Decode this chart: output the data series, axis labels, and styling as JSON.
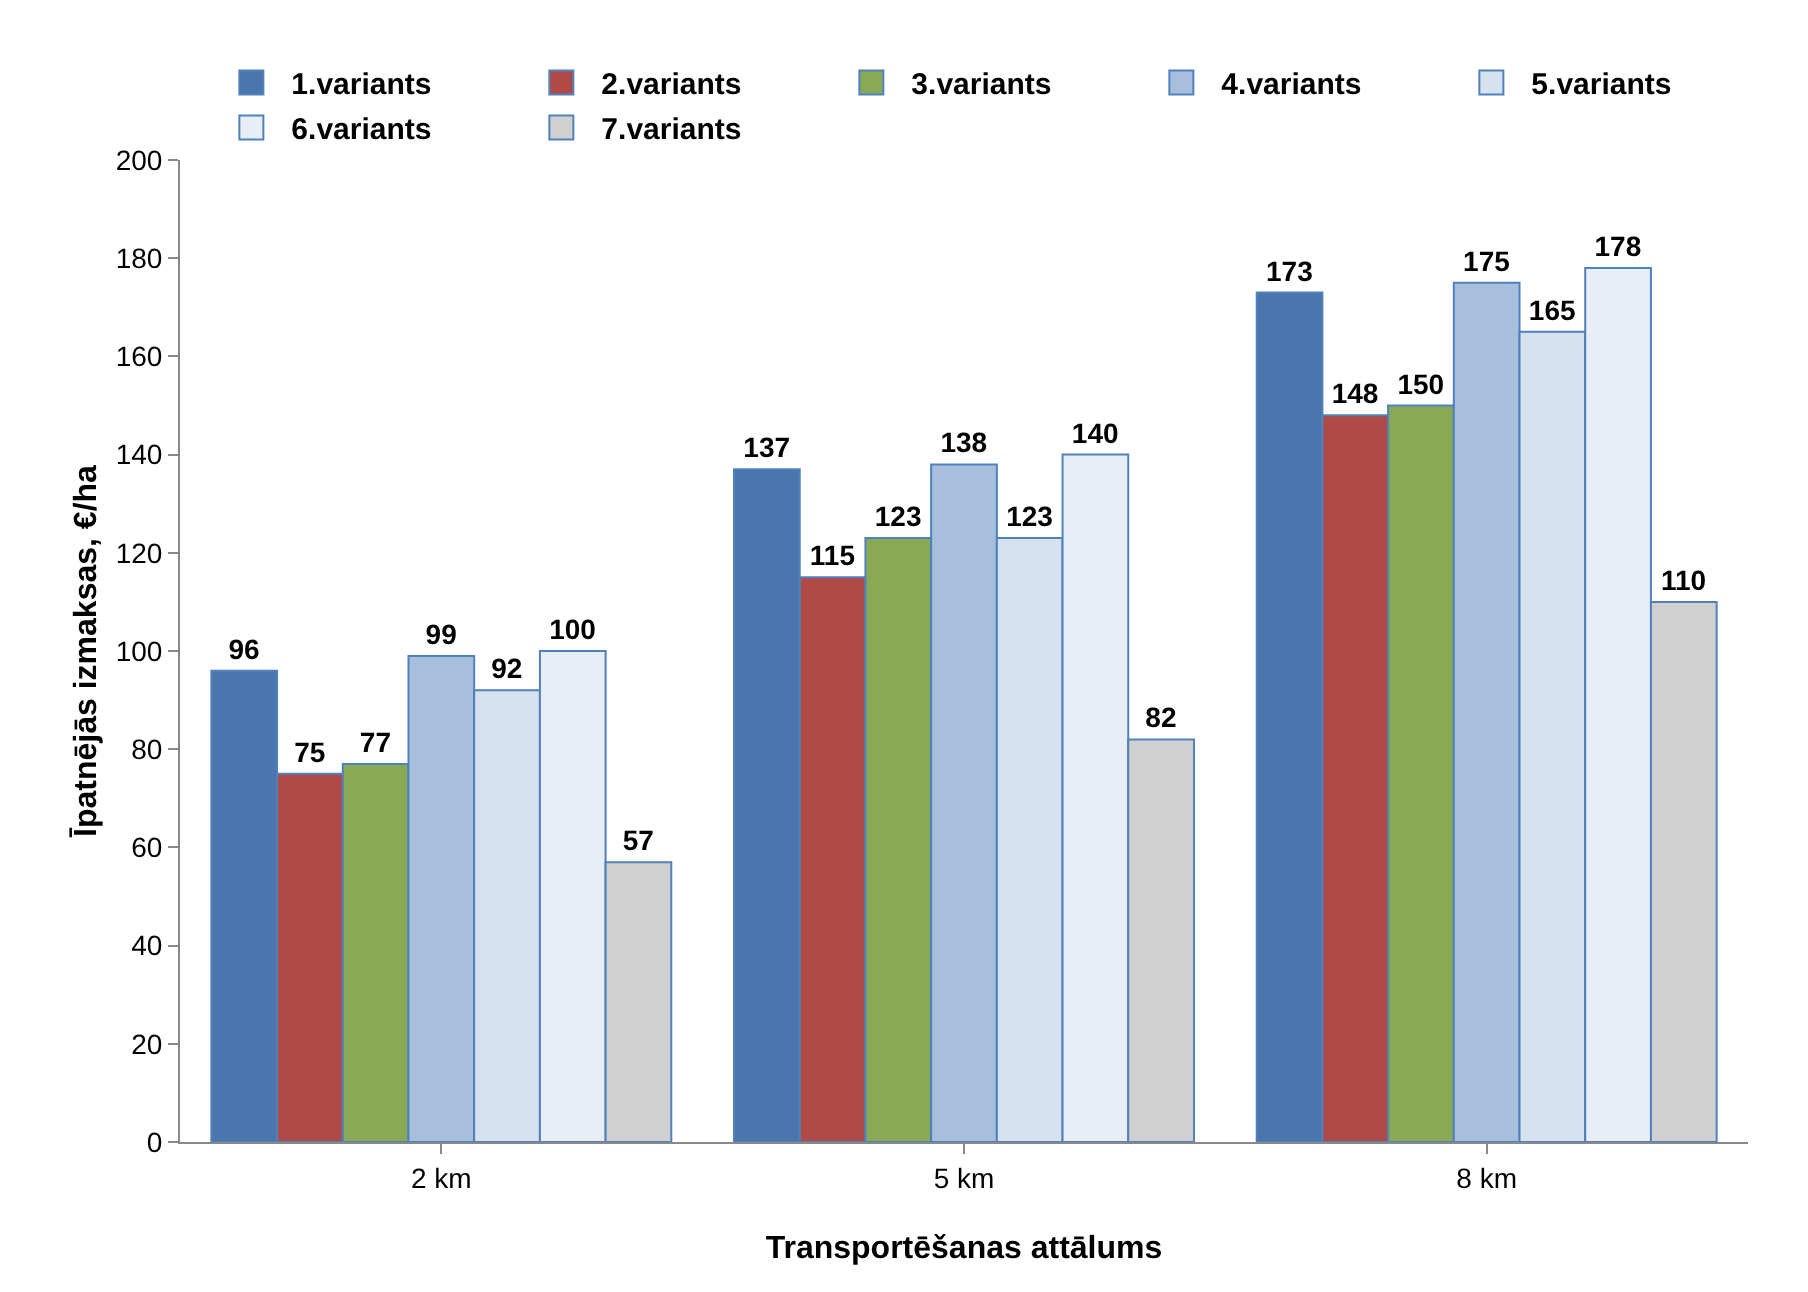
{
  "chart_data": {
    "type": "bar",
    "xlabel": "Transportēšanas attālums",
    "ylabel": "Īpatnējās izmaksas, €/ha",
    "categories": [
      "2 km",
      "5 km",
      "8 km"
    ],
    "series": [
      {
        "name": "1.variants",
        "color": "#4a76ad",
        "values": [
          96,
          137,
          173
        ]
      },
      {
        "name": "2.variants",
        "color": "#b04a47",
        "values": [
          75,
          115,
          148
        ]
      },
      {
        "name": "3.variants",
        "color": "#8aa955",
        "values": [
          77,
          123,
          150
        ]
      },
      {
        "name": "4.variants",
        "color": "#a8bfdc",
        "values": [
          99,
          138,
          175
        ]
      },
      {
        "name": "5.variants",
        "color": "#d6e2f0",
        "values": [
          92,
          123,
          165
        ]
      },
      {
        "name": "6.variants",
        "color": "#e9eef6",
        "values": [
          100,
          140,
          178
        ]
      },
      {
        "name": "7.variants",
        "color": "#d0d0d0",
        "values": [
          57,
          82,
          110
        ]
      }
    ],
    "ylim": [
      0,
      200
    ],
    "yticks": [
      0,
      20,
      40,
      60,
      80,
      100,
      120,
      140,
      160,
      180,
      200
    ],
    "data_labels": true,
    "legend": "top"
  }
}
